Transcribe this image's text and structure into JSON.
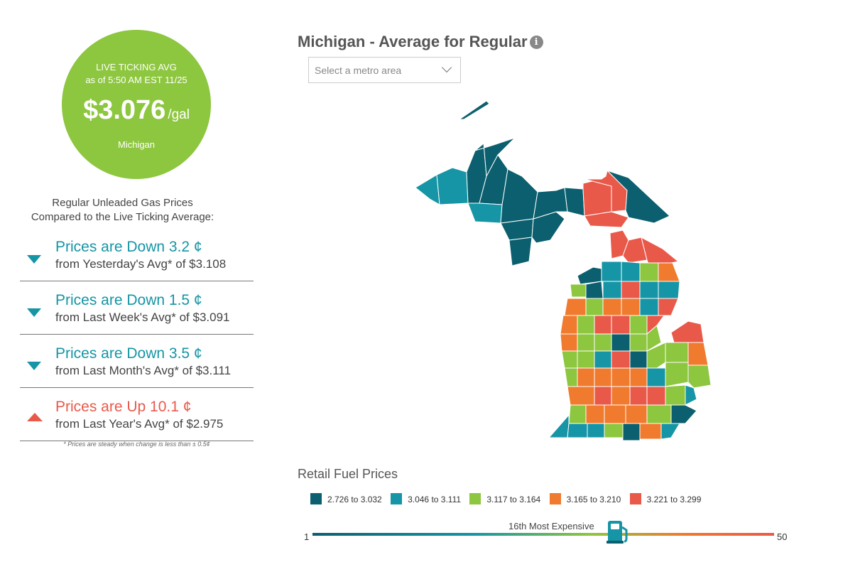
{
  "live_avg": {
    "title": "LIVE TICKING AVG",
    "asof": "as of   5:50 AM EST 11/25",
    "price": "$3.076",
    "unit": "/gal",
    "region": "Michigan"
  },
  "compare": {
    "title_line1": "Regular Unleaded Gas Prices",
    "title_line2": "Compared to the Live Ticking Average:",
    "rows": [
      {
        "main": "Prices are Down 3.2 ¢",
        "sub": "from Yesterday's Avg* of $3.108",
        "direction": "down"
      },
      {
        "main": "Prices are Down 1.5 ¢",
        "sub": "from Last Week's Avg* of $3.091",
        "direction": "down"
      },
      {
        "main": "Prices are Down 3.5 ¢",
        "sub": "from Last Month's Avg* of $3.111",
        "direction": "down"
      },
      {
        "main": "Prices are Up 10.1 ¢",
        "sub": "from Last Year's Avg* of $2.975",
        "direction": "up"
      }
    ],
    "footnote": "* Prices are steady when change is less than ± 0.5¢"
  },
  "map": {
    "title": "Michigan - Average for Regular",
    "info_icon": "i",
    "metro_placeholder": "Select a metro area"
  },
  "legend": {
    "title": "Retail Fuel Prices",
    "items": [
      {
        "label": "2.726 to 3.032",
        "color": "#0b5f6e"
      },
      {
        "label": "3.046 to 3.111",
        "color": "#1595a5"
      },
      {
        "label": "3.117 to 3.164",
        "color": "#8dc63f"
      },
      {
        "label": "3.165 to 3.210",
        "color": "#f07a2d"
      },
      {
        "label": "3.221 to 3.299",
        "color": "#e9594a"
      }
    ]
  },
  "rank": {
    "label": "16th Most Expensive",
    "min": "1",
    "max": "50",
    "position": 16
  },
  "colors": {
    "green": "#8dc63f",
    "teal": "#1595a5",
    "dark_teal": "#0b5f6e",
    "orange": "#f07a2d",
    "red": "#e9594a"
  }
}
